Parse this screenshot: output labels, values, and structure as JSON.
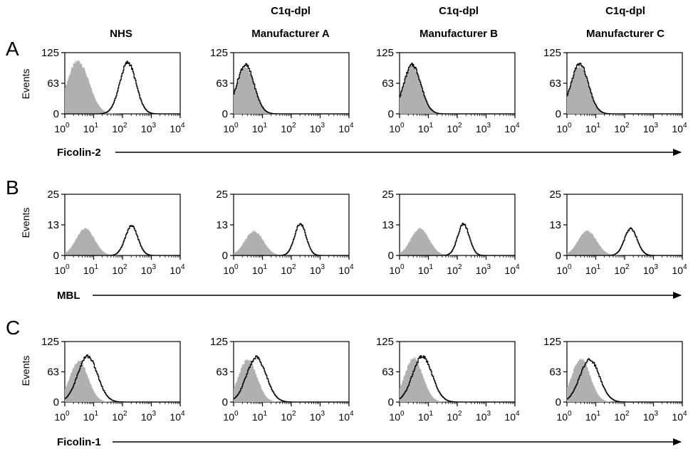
{
  "column_headers": [
    {
      "line1": "",
      "line2": "NHS"
    },
    {
      "line1": "C1q-dpl",
      "line2": "Manufacturer A"
    },
    {
      "line1": "C1q-dpl",
      "line2": "Manufacturer B"
    },
    {
      "line1": "C1q-dpl",
      "line2": "Manufacturer C"
    }
  ],
  "rows": [
    {
      "letter": "A",
      "marker": "Ficolin-2",
      "ylabel": "Events",
      "yticks": [
        "125",
        "63",
        "0"
      ],
      "ylim": [
        0,
        125
      ]
    },
    {
      "letter": "B",
      "marker": "MBL",
      "ylabel": "Events",
      "yticks": [
        "25",
        "13",
        "0"
      ],
      "ylim": [
        0,
        25
      ]
    },
    {
      "letter": "C",
      "marker": "Ficolin-1",
      "ylabel": "Events",
      "yticks": [
        "125",
        "63",
        "0"
      ],
      "ylim": [
        0,
        125
      ]
    }
  ],
  "x_axis": {
    "base": "10",
    "exponents": [
      "0",
      "1",
      "2",
      "3",
      "4"
    ],
    "scale": "log",
    "xlim": [
      1,
      10000
    ]
  },
  "colors": {
    "control_fill": "#b0b0b0",
    "sample_line": "#000000",
    "axis": "#000000"
  },
  "chart_data": [
    {
      "type": "area",
      "panel": "A-NHS",
      "x_scale": "log",
      "series": [
        {
          "kind": "control",
          "peak_x": 2.8,
          "peak_y": 108,
          "width_decades": 0.38
        },
        {
          "kind": "sample",
          "peak_x": 150,
          "peak_y": 105,
          "width_decades": 0.28
        }
      ]
    },
    {
      "type": "area",
      "panel": "A-Manufacturer A",
      "x_scale": "log",
      "series": [
        {
          "kind": "control",
          "peak_x": 2.5,
          "peak_y": 98,
          "width_decades": 0.3
        },
        {
          "kind": "sample",
          "peak_x": 2.5,
          "peak_y": 100,
          "width_decades": 0.3
        }
      ]
    },
    {
      "type": "area",
      "panel": "A-Manufacturer B",
      "x_scale": "log",
      "series": [
        {
          "kind": "control",
          "peak_x": 2.7,
          "peak_y": 98,
          "width_decades": 0.3
        },
        {
          "kind": "sample",
          "peak_x": 2.7,
          "peak_y": 100,
          "width_decades": 0.3
        }
      ]
    },
    {
      "type": "area",
      "panel": "A-Manufacturer C",
      "x_scale": "log",
      "series": [
        {
          "kind": "control",
          "peak_x": 2.7,
          "peak_y": 98,
          "width_decades": 0.3
        },
        {
          "kind": "sample",
          "peak_x": 2.7,
          "peak_y": 102,
          "width_decades": 0.3
        }
      ]
    },
    {
      "type": "area",
      "panel": "B-NHS",
      "x_scale": "log",
      "series": [
        {
          "kind": "control",
          "peak_x": 5,
          "peak_y": 11,
          "width_decades": 0.32
        },
        {
          "kind": "sample",
          "peak_x": 200,
          "peak_y": 12,
          "width_decades": 0.22
        }
      ]
    },
    {
      "type": "area",
      "panel": "B-Manufacturer A",
      "x_scale": "log",
      "series": [
        {
          "kind": "control",
          "peak_x": 5,
          "peak_y": 10,
          "width_decades": 0.32
        },
        {
          "kind": "sample",
          "peak_x": 200,
          "peak_y": 13,
          "width_decades": 0.2
        }
      ]
    },
    {
      "type": "area",
      "panel": "B-Manufacturer B",
      "x_scale": "log",
      "series": [
        {
          "kind": "control",
          "peak_x": 5,
          "peak_y": 11,
          "width_decades": 0.32
        },
        {
          "kind": "sample",
          "peak_x": 160,
          "peak_y": 13,
          "width_decades": 0.2
        }
      ]
    },
    {
      "type": "area",
      "panel": "B-Manufacturer C",
      "x_scale": "log",
      "series": [
        {
          "kind": "control",
          "peak_x": 5,
          "peak_y": 10,
          "width_decades": 0.32
        },
        {
          "kind": "sample",
          "peak_x": 160,
          "peak_y": 11,
          "width_decades": 0.22
        }
      ]
    },
    {
      "type": "area",
      "panel": "C-NHS",
      "x_scale": "log",
      "series": [
        {
          "kind": "control",
          "peak_x": 3,
          "peak_y": 85,
          "width_decades": 0.32
        },
        {
          "kind": "sample",
          "peak_x": 6,
          "peak_y": 95,
          "width_decades": 0.34
        }
      ]
    },
    {
      "type": "area",
      "panel": "C-Manufacturer A",
      "x_scale": "log",
      "series": [
        {
          "kind": "control",
          "peak_x": 3,
          "peak_y": 88,
          "width_decades": 0.32
        },
        {
          "kind": "sample",
          "peak_x": 6,
          "peak_y": 92,
          "width_decades": 0.34
        }
      ]
    },
    {
      "type": "area",
      "panel": "C-Manufacturer B",
      "x_scale": "log",
      "series": [
        {
          "kind": "control",
          "peak_x": 3,
          "peak_y": 90,
          "width_decades": 0.32
        },
        {
          "kind": "sample",
          "peak_x": 6,
          "peak_y": 94,
          "width_decades": 0.34
        }
      ]
    },
    {
      "type": "area",
      "panel": "C-Manufacturer C",
      "x_scale": "log",
      "series": [
        {
          "kind": "control",
          "peak_x": 3,
          "peak_y": 90,
          "width_decades": 0.32
        },
        {
          "kind": "sample",
          "peak_x": 6,
          "peak_y": 88,
          "width_decades": 0.34
        }
      ]
    }
  ]
}
